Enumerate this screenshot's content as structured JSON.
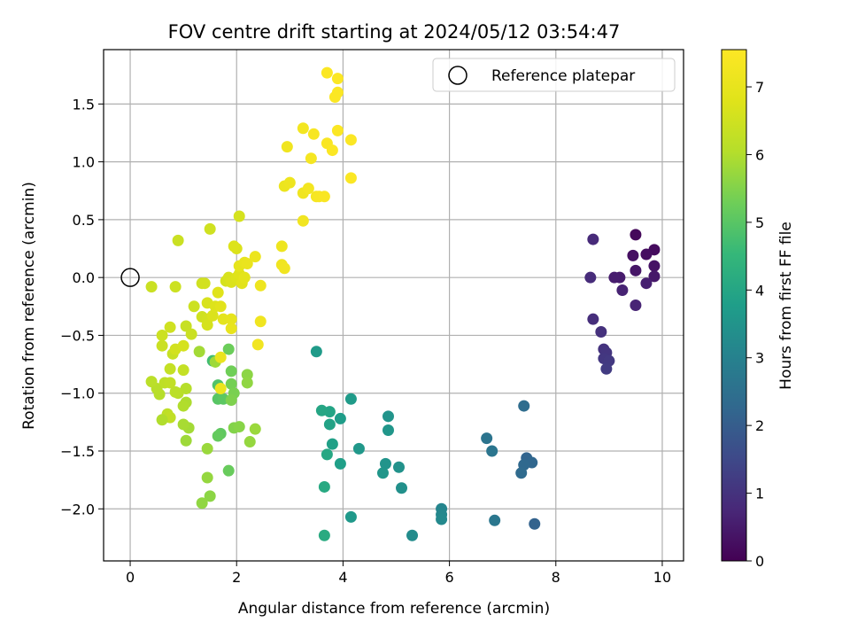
{
  "chart_data": {
    "type": "scatter",
    "title": "FOV centre drift starting at 2024/05/12 03:54:47",
    "xlabel": "Angular distance from reference (arcmin)",
    "ylabel": "Rotation from reference (arcmin)",
    "xlim": [
      -0.5,
      10.4
    ],
    "ylim": [
      -2.45,
      1.97
    ],
    "x_ticks": [
      0,
      2,
      4,
      6,
      8,
      10
    ],
    "y_ticks": [
      -2.0,
      -1.5,
      -1.0,
      -0.5,
      0.0,
      0.5,
      1.0,
      1.5
    ],
    "x_tick_labels": [
      "0",
      "2",
      "4",
      "6",
      "8",
      "10"
    ],
    "y_tick_labels": [
      "−2.0",
      "−1.5",
      "−1.0",
      "−0.5",
      "0.0",
      "0.5",
      "1.0",
      "1.5"
    ],
    "grid": true,
    "colormap": "viridis",
    "colorbar": {
      "label": "Hours from first FF file",
      "range": [
        0,
        7.55
      ],
      "ticks": [
        0,
        1,
        2,
        3,
        4,
        5,
        6,
        7
      ],
      "tick_labels": [
        "0",
        "1",
        "2",
        "3",
        "4",
        "5",
        "6",
        "7"
      ]
    },
    "legend": {
      "placement": "top-right",
      "entries": [
        {
          "label": "Reference platepar",
          "marker": "open-circle"
        }
      ]
    },
    "reference_point": {
      "x": 0,
      "y": 0
    },
    "points": [
      {
        "x": 9.5,
        "y": 0.37,
        "c": 0.15
      },
      {
        "x": 9.85,
        "y": 0.24,
        "c": 0.2
      },
      {
        "x": 9.7,
        "y": 0.2,
        "c": 0.25
      },
      {
        "x": 9.45,
        "y": 0.19,
        "c": 0.3
      },
      {
        "x": 9.85,
        "y": 0.1,
        "c": 0.35
      },
      {
        "x": 9.5,
        "y": 0.06,
        "c": 0.4
      },
      {
        "x": 9.85,
        "y": 0.01,
        "c": 0.45
      },
      {
        "x": 9.2,
        "y": 0.0,
        "c": 0.5
      },
      {
        "x": 9.1,
        "y": 0.0,
        "c": 0.55
      },
      {
        "x": 9.7,
        "y": -0.05,
        "c": 0.6
      },
      {
        "x": 9.25,
        "y": -0.11,
        "c": 0.65
      },
      {
        "x": 9.5,
        "y": -0.24,
        "c": 0.7
      },
      {
        "x": 8.7,
        "y": 0.33,
        "c": 0.8
      },
      {
        "x": 8.65,
        "y": 0.0,
        "c": 0.85
      },
      {
        "x": 8.7,
        "y": -0.36,
        "c": 0.9
      },
      {
        "x": 8.85,
        "y": -0.47,
        "c": 0.95
      },
      {
        "x": 8.9,
        "y": -0.62,
        "c": 1.0
      },
      {
        "x": 8.95,
        "y": -0.65,
        "c": 1.05
      },
      {
        "x": 8.9,
        "y": -0.7,
        "c": 1.1
      },
      {
        "x": 9.0,
        "y": -0.72,
        "c": 1.15
      },
      {
        "x": 8.95,
        "y": -0.79,
        "c": 1.2
      },
      {
        "x": 7.4,
        "y": -1.11,
        "c": 2.4
      },
      {
        "x": 7.45,
        "y": -1.56,
        "c": 2.2
      },
      {
        "x": 7.55,
        "y": -1.6,
        "c": 2.25
      },
      {
        "x": 7.4,
        "y": -1.62,
        "c": 2.3
      },
      {
        "x": 7.35,
        "y": -1.69,
        "c": 2.35
      },
      {
        "x": 7.6,
        "y": -2.13,
        "c": 2.15
      },
      {
        "x": 6.7,
        "y": -1.39,
        "c": 2.6
      },
      {
        "x": 6.8,
        "y": -1.5,
        "c": 2.65
      },
      {
        "x": 6.85,
        "y": -2.1,
        "c": 2.7
      },
      {
        "x": 5.85,
        "y": -2.0,
        "c": 3.1
      },
      {
        "x": 5.85,
        "y": -2.05,
        "c": 3.15
      },
      {
        "x": 5.85,
        "y": -2.09,
        "c": 3.2
      },
      {
        "x": 5.3,
        "y": -2.23,
        "c": 3.3
      },
      {
        "x": 5.1,
        "y": -1.82,
        "c": 3.4
      },
      {
        "x": 5.05,
        "y": -1.64,
        "c": 3.45
      },
      {
        "x": 4.8,
        "y": -1.61,
        "c": 3.5
      },
      {
        "x": 4.75,
        "y": -1.69,
        "c": 3.55
      },
      {
        "x": 4.85,
        "y": -1.2,
        "c": 3.5
      },
      {
        "x": 4.85,
        "y": -1.32,
        "c": 3.55
      },
      {
        "x": 4.3,
        "y": -1.48,
        "c": 3.6
      },
      {
        "x": 4.15,
        "y": -1.05,
        "c": 3.7
      },
      {
        "x": 4.15,
        "y": -2.07,
        "c": 3.65
      },
      {
        "x": 3.95,
        "y": -1.22,
        "c": 3.75
      },
      {
        "x": 3.95,
        "y": -1.61,
        "c": 3.8
      },
      {
        "x": 3.8,
        "y": -1.44,
        "c": 3.85
      },
      {
        "x": 3.75,
        "y": -1.27,
        "c": 3.9
      },
      {
        "x": 3.75,
        "y": -1.16,
        "c": 3.95
      },
      {
        "x": 3.6,
        "y": -1.15,
        "c": 4.0
      },
      {
        "x": 3.7,
        "y": -1.53,
        "c": 4.05
      },
      {
        "x": 3.65,
        "y": -1.81,
        "c": 4.1
      },
      {
        "x": 3.65,
        "y": -2.23,
        "c": 4.15
      },
      {
        "x": 3.5,
        "y": -0.64,
        "c": 3.7
      },
      {
        "x": 1.55,
        "y": -0.72,
        "c": 4.7
      },
      {
        "x": 1.65,
        "y": -0.93,
        "c": 4.9
      },
      {
        "x": 1.65,
        "y": -1.05,
        "c": 5.0
      },
      {
        "x": 1.75,
        "y": -1.05,
        "c": 5.05
      },
      {
        "x": 1.7,
        "y": -1.35,
        "c": 5.1
      },
      {
        "x": 1.65,
        "y": -1.37,
        "c": 5.15
      },
      {
        "x": 1.85,
        "y": -1.67,
        "c": 5.2
      },
      {
        "x": 1.85,
        "y": -0.62,
        "c": 5.25
      },
      {
        "x": 1.9,
        "y": -0.81,
        "c": 5.3
      },
      {
        "x": 1.9,
        "y": -0.92,
        "c": 5.35
      },
      {
        "x": 1.95,
        "y": -1.0,
        "c": 5.4
      },
      {
        "x": 1.9,
        "y": -1.06,
        "c": 5.45
      },
      {
        "x": 1.95,
        "y": -1.3,
        "c": 5.5
      },
      {
        "x": 2.05,
        "y": -1.29,
        "c": 5.55
      },
      {
        "x": 2.2,
        "y": -0.84,
        "c": 5.6
      },
      {
        "x": 2.2,
        "y": -0.91,
        "c": 5.65
      },
      {
        "x": 2.25,
        "y": -1.42,
        "c": 5.7
      },
      {
        "x": 2.35,
        "y": -1.31,
        "c": 5.75
      },
      {
        "x": 1.5,
        "y": -1.89,
        "c": 5.6
      },
      {
        "x": 1.35,
        "y": -1.95,
        "c": 5.65
      },
      {
        "x": 1.45,
        "y": -1.73,
        "c": 5.7
      },
      {
        "x": 1.45,
        "y": -1.48,
        "c": 5.75
      },
      {
        "x": 1.6,
        "y": -0.73,
        "c": 5.8
      },
      {
        "x": 1.3,
        "y": -0.64,
        "c": 5.85
      },
      {
        "x": 1.05,
        "y": -1.41,
        "c": 5.8
      },
      {
        "x": 1.1,
        "y": -1.3,
        "c": 5.85
      },
      {
        "x": 1.0,
        "y": -1.27,
        "c": 5.9
      },
      {
        "x": 1.05,
        "y": -1.08,
        "c": 5.95
      },
      {
        "x": 1.0,
        "y": -1.11,
        "c": 6.0
      },
      {
        "x": 1.05,
        "y": -0.96,
        "c": 6.05
      },
      {
        "x": 0.9,
        "y": -1.0,
        "c": 6.1
      },
      {
        "x": 0.85,
        "y": -0.99,
        "c": 6.15
      },
      {
        "x": 0.7,
        "y": -1.18,
        "c": 6.2
      },
      {
        "x": 0.75,
        "y": -1.21,
        "c": 6.25
      },
      {
        "x": 0.6,
        "y": -1.23,
        "c": 6.0
      },
      {
        "x": 0.55,
        "y": -1.01,
        "c": 6.05
      },
      {
        "x": 0.5,
        "y": -0.96,
        "c": 6.1
      },
      {
        "x": 0.4,
        "y": -0.9,
        "c": 6.15
      },
      {
        "x": 0.65,
        "y": -0.91,
        "c": 6.2
      },
      {
        "x": 0.75,
        "y": -0.91,
        "c": 6.25
      },
      {
        "x": 0.75,
        "y": -0.79,
        "c": 6.3
      },
      {
        "x": 0.8,
        "y": -0.66,
        "c": 6.35
      },
      {
        "x": 0.6,
        "y": -0.59,
        "c": 6.4
      },
      {
        "x": 0.6,
        "y": -0.5,
        "c": 6.45
      },
      {
        "x": 0.75,
        "y": -0.43,
        "c": 6.5
      },
      {
        "x": 0.85,
        "y": -0.62,
        "c": 6.55
      },
      {
        "x": 1.0,
        "y": -0.59,
        "c": 6.6
      },
      {
        "x": 1.0,
        "y": -0.8,
        "c": 6.3
      },
      {
        "x": 1.05,
        "y": -0.42,
        "c": 6.35
      },
      {
        "x": 1.15,
        "y": -0.49,
        "c": 6.4
      },
      {
        "x": 1.2,
        "y": -0.25,
        "c": 6.45
      },
      {
        "x": 1.35,
        "y": -0.34,
        "c": 6.5
      },
      {
        "x": 1.45,
        "y": -0.36,
        "c": 6.55
      },
      {
        "x": 1.45,
        "y": -0.41,
        "c": 6.6
      },
      {
        "x": 1.45,
        "y": -0.22,
        "c": 6.65
      },
      {
        "x": 1.55,
        "y": -0.33,
        "c": 6.7
      },
      {
        "x": 1.6,
        "y": -0.25,
        "c": 6.75
      },
      {
        "x": 1.65,
        "y": -0.13,
        "c": 6.8
      },
      {
        "x": 1.7,
        "y": -0.25,
        "c": 6.85
      },
      {
        "x": 1.75,
        "y": -0.36,
        "c": 6.9
      },
      {
        "x": 1.9,
        "y": -0.36,
        "c": 6.95
      },
      {
        "x": 1.9,
        "y": -0.44,
        "c": 7.0
      },
      {
        "x": 1.7,
        "y": -0.69,
        "c": 7.05
      },
      {
        "x": 1.7,
        "y": -0.96,
        "c": 7.1
      },
      {
        "x": 0.4,
        "y": -0.08,
        "c": 6.4
      },
      {
        "x": 0.85,
        "y": -0.08,
        "c": 6.45
      },
      {
        "x": 1.35,
        "y": -0.05,
        "c": 6.5
      },
      {
        "x": 1.4,
        "y": -0.05,
        "c": 6.55
      },
      {
        "x": 1.8,
        "y": -0.03,
        "c": 6.6
      },
      {
        "x": 1.85,
        "y": 0.0,
        "c": 6.65
      },
      {
        "x": 1.9,
        "y": -0.04,
        "c": 6.7
      },
      {
        "x": 2.0,
        "y": 0.0,
        "c": 6.75
      },
      {
        "x": 2.05,
        "y": 0.03,
        "c": 6.8
      },
      {
        "x": 2.1,
        "y": -0.05,
        "c": 6.85
      },
      {
        "x": 2.15,
        "y": 0.0,
        "c": 6.9
      },
      {
        "x": 2.05,
        "y": 0.1,
        "c": 6.95
      },
      {
        "x": 2.15,
        "y": 0.13,
        "c": 7.0
      },
      {
        "x": 2.2,
        "y": 0.12,
        "c": 7.05
      },
      {
        "x": 2.35,
        "y": 0.18,
        "c": 7.1
      },
      {
        "x": 2.45,
        "y": -0.07,
        "c": 7.15
      },
      {
        "x": 2.45,
        "y": -0.38,
        "c": 7.2
      },
      {
        "x": 2.4,
        "y": -0.58,
        "c": 7.25
      },
      {
        "x": 2.0,
        "y": 0.25,
        "c": 6.7
      },
      {
        "x": 1.95,
        "y": 0.27,
        "c": 6.75
      },
      {
        "x": 2.05,
        "y": 0.53,
        "c": 6.6
      },
      {
        "x": 1.5,
        "y": 0.42,
        "c": 6.5
      },
      {
        "x": 0.9,
        "y": 0.32,
        "c": 6.4
      },
      {
        "x": 2.85,
        "y": 0.27,
        "c": 7.15
      },
      {
        "x": 2.85,
        "y": 0.11,
        "c": 7.2
      },
      {
        "x": 2.9,
        "y": 0.08,
        "c": 7.25
      },
      {
        "x": 2.9,
        "y": 0.79,
        "c": 7.1
      },
      {
        "x": 3.0,
        "y": 0.82,
        "c": 7.15
      },
      {
        "x": 3.25,
        "y": 0.73,
        "c": 7.2
      },
      {
        "x": 3.25,
        "y": 0.49,
        "c": 7.25
      },
      {
        "x": 3.35,
        "y": 0.77,
        "c": 7.3
      },
      {
        "x": 3.5,
        "y": 0.7,
        "c": 7.35
      },
      {
        "x": 3.55,
        "y": 0.7,
        "c": 7.4
      },
      {
        "x": 3.65,
        "y": 0.7,
        "c": 7.45
      },
      {
        "x": 2.95,
        "y": 1.13,
        "c": 7.2
      },
      {
        "x": 3.25,
        "y": 1.29,
        "c": 7.3
      },
      {
        "x": 3.4,
        "y": 1.03,
        "c": 7.35
      },
      {
        "x": 3.45,
        "y": 1.24,
        "c": 7.4
      },
      {
        "x": 3.7,
        "y": 1.16,
        "c": 7.45
      },
      {
        "x": 3.8,
        "y": 1.1,
        "c": 7.5
      },
      {
        "x": 3.9,
        "y": 1.27,
        "c": 7.5
      },
      {
        "x": 4.15,
        "y": 1.19,
        "c": 7.5
      },
      {
        "x": 4.15,
        "y": 0.86,
        "c": 7.5
      },
      {
        "x": 3.7,
        "y": 1.77,
        "c": 7.5
      },
      {
        "x": 3.9,
        "y": 1.72,
        "c": 7.5
      },
      {
        "x": 3.9,
        "y": 1.6,
        "c": 7.5
      },
      {
        "x": 3.85,
        "y": 1.56,
        "c": 7.5
      }
    ]
  }
}
